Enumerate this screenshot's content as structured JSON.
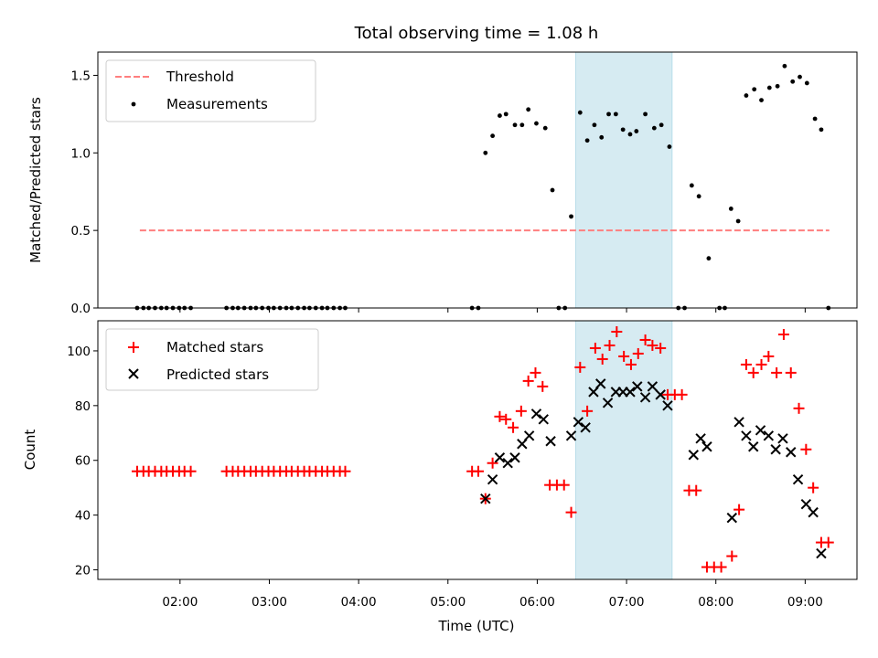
{
  "chart_data": {
    "title": "Total observing time = 1.08 h",
    "xlabel": "Time (UTC)",
    "x_unit": "hours UTC",
    "xlim": [
      1.08,
      9.58
    ],
    "xticks": [
      {
        "value": 2,
        "label": "02:00"
      },
      {
        "value": 3,
        "label": "03:00"
      },
      {
        "value": 4,
        "label": "04:00"
      },
      {
        "value": 5,
        "label": "05:00"
      },
      {
        "value": 6,
        "label": "06:00"
      },
      {
        "value": 7,
        "label": "07:00"
      },
      {
        "value": 8,
        "label": "08:00"
      },
      {
        "value": 9,
        "label": "09:00"
      }
    ],
    "highlight_span": {
      "x0": 6.43,
      "x1": 7.51,
      "color": "#add8e6"
    },
    "panels": [
      {
        "type": "scatter",
        "ylabel": "Matched/Predicted stars",
        "ylim": [
          0,
          1.65
        ],
        "yticks": [
          {
            "value": 0,
            "label": "0.0"
          },
          {
            "value": 0.5,
            "label": "0.5"
          },
          {
            "value": 1.0,
            "label": "1.0"
          },
          {
            "value": 1.5,
            "label": "1.5"
          }
        ],
        "legend": "top-left",
        "threshold": {
          "name": "Threshold",
          "color": "#ff7f7f",
          "y": 0.5,
          "x": [
            1.55,
            9.27
          ]
        },
        "series": [
          {
            "name": "Measurements",
            "marker": "dot",
            "color": "#000000",
            "points": [
              [
                1.52,
                0
              ],
              [
                1.59,
                0
              ],
              [
                1.65,
                0
              ],
              [
                1.72,
                0
              ],
              [
                1.79,
                0
              ],
              [
                1.85,
                0
              ],
              [
                1.92,
                0
              ],
              [
                1.99,
                0
              ],
              [
                2.05,
                0
              ],
              [
                2.12,
                0
              ],
              [
                2.52,
                0
              ],
              [
                2.59,
                0
              ],
              [
                2.65,
                0
              ],
              [
                2.72,
                0
              ],
              [
                2.79,
                0
              ],
              [
                2.85,
                0
              ],
              [
                2.92,
                0
              ],
              [
                2.99,
                0
              ],
              [
                3.05,
                0
              ],
              [
                3.12,
                0
              ],
              [
                3.19,
                0
              ],
              [
                3.25,
                0
              ],
              [
                3.32,
                0
              ],
              [
                3.39,
                0
              ],
              [
                3.45,
                0
              ],
              [
                3.52,
                0
              ],
              [
                3.59,
                0
              ],
              [
                3.65,
                0
              ],
              [
                3.72,
                0
              ],
              [
                3.79,
                0
              ],
              [
                3.85,
                0
              ],
              [
                5.27,
                0
              ],
              [
                5.34,
                0
              ],
              [
                5.42,
                1.0
              ],
              [
                5.5,
                1.11
              ],
              [
                5.58,
                1.24
              ],
              [
                5.65,
                1.25
              ],
              [
                5.75,
                1.18
              ],
              [
                5.83,
                1.18
              ],
              [
                5.9,
                1.28
              ],
              [
                5.99,
                1.19
              ],
              [
                6.09,
                1.16
              ],
              [
                6.17,
                0.76
              ],
              [
                6.24,
                0
              ],
              [
                6.31,
                0
              ],
              [
                6.38,
                0.59
              ],
              [
                6.48,
                1.26
              ],
              [
                6.56,
                1.08
              ],
              [
                6.64,
                1.18
              ],
              [
                6.72,
                1.1
              ],
              [
                6.8,
                1.25
              ],
              [
                6.88,
                1.25
              ],
              [
                6.96,
                1.15
              ],
              [
                7.04,
                1.12
              ],
              [
                7.11,
                1.14
              ],
              [
                7.21,
                1.25
              ],
              [
                7.31,
                1.16
              ],
              [
                7.39,
                1.18
              ],
              [
                7.48,
                1.04
              ],
              [
                7.58,
                0
              ],
              [
                7.65,
                0
              ],
              [
                7.73,
                0.79
              ],
              [
                7.81,
                0.72
              ],
              [
                7.92,
                0.32
              ],
              [
                8.04,
                0
              ],
              [
                8.1,
                0
              ],
              [
                8.17,
                0.64
              ],
              [
                8.25,
                0.56
              ],
              [
                8.34,
                1.37
              ],
              [
                8.43,
                1.41
              ],
              [
                8.51,
                1.34
              ],
              [
                8.6,
                1.42
              ],
              [
                8.69,
                1.43
              ],
              [
                8.77,
                1.56
              ],
              [
                8.86,
                1.46
              ],
              [
                8.94,
                1.49
              ],
              [
                9.02,
                1.45
              ],
              [
                9.11,
                1.22
              ],
              [
                9.18,
                1.15
              ],
              [
                9.26,
                0
              ]
            ]
          }
        ]
      },
      {
        "type": "scatter",
        "ylabel": "Count",
        "ylim": [
          16.5,
          111
        ],
        "yticks": [
          {
            "value": 20,
            "label": "20"
          },
          {
            "value": 40,
            "label": "40"
          },
          {
            "value": 60,
            "label": "60"
          },
          {
            "value": 80,
            "label": "80"
          },
          {
            "value": 100,
            "label": "100"
          }
        ],
        "legend": "top-left",
        "series": [
          {
            "name": "Matched stars",
            "marker": "plus",
            "color": "#ff0000",
            "points": [
              [
                1.52,
                56
              ],
              [
                1.59,
                56
              ],
              [
                1.65,
                56
              ],
              [
                1.72,
                56
              ],
              [
                1.79,
                56
              ],
              [
                1.85,
                56
              ],
              [
                1.92,
                56
              ],
              [
                1.99,
                56
              ],
              [
                2.05,
                56
              ],
              [
                2.12,
                56
              ],
              [
                2.52,
                56
              ],
              [
                2.59,
                56
              ],
              [
                2.65,
                56
              ],
              [
                2.72,
                56
              ],
              [
                2.79,
                56
              ],
              [
                2.85,
                56
              ],
              [
                2.92,
                56
              ],
              [
                2.99,
                56
              ],
              [
                3.05,
                56
              ],
              [
                3.12,
                56
              ],
              [
                3.19,
                56
              ],
              [
                3.25,
                56
              ],
              [
                3.32,
                56
              ],
              [
                3.39,
                56
              ],
              [
                3.45,
                56
              ],
              [
                3.52,
                56
              ],
              [
                3.59,
                56
              ],
              [
                3.65,
                56
              ],
              [
                3.72,
                56
              ],
              [
                3.79,
                56
              ],
              [
                3.85,
                56
              ],
              [
                5.27,
                56
              ],
              [
                5.34,
                56
              ],
              [
                5.42,
                46
              ],
              [
                5.5,
                59
              ],
              [
                5.58,
                76
              ],
              [
                5.65,
                75
              ],
              [
                5.73,
                72
              ],
              [
                5.82,
                78
              ],
              [
                5.9,
                89
              ],
              [
                5.98,
                92
              ],
              [
                6.06,
                87
              ],
              [
                6.14,
                51
              ],
              [
                6.22,
                51
              ],
              [
                6.3,
                51
              ],
              [
                6.38,
                41
              ],
              [
                6.48,
                94
              ],
              [
                6.56,
                78
              ],
              [
                6.65,
                101
              ],
              [
                6.73,
                97
              ],
              [
                6.81,
                102
              ],
              [
                6.89,
                107
              ],
              [
                6.97,
                98
              ],
              [
                7.05,
                95
              ],
              [
                7.13,
                99
              ],
              [
                7.21,
                104
              ],
              [
                7.29,
                102
              ],
              [
                7.38,
                101
              ],
              [
                7.46,
                84
              ],
              [
                7.54,
                84
              ],
              [
                7.62,
                84
              ],
              [
                7.7,
                49
              ],
              [
                7.78,
                49
              ],
              [
                7.9,
                21
              ],
              [
                7.98,
                21
              ],
              [
                8.06,
                21
              ],
              [
                8.18,
                25
              ],
              [
                8.26,
                42
              ],
              [
                8.34,
                95
              ],
              [
                8.42,
                92
              ],
              [
                8.51,
                95
              ],
              [
                8.59,
                98
              ],
              [
                8.68,
                92
              ],
              [
                8.76,
                106
              ],
              [
                8.84,
                92
              ],
              [
                8.93,
                79
              ],
              [
                9.01,
                64
              ],
              [
                9.09,
                50
              ],
              [
                9.18,
                30
              ],
              [
                9.26,
                30
              ]
            ]
          },
          {
            "name": "Predicted stars",
            "marker": "x",
            "color": "#000000",
            "points": [
              [
                5.42,
                46
              ],
              [
                5.5,
                53
              ],
              [
                5.58,
                61
              ],
              [
                5.67,
                59
              ],
              [
                5.75,
                61
              ],
              [
                5.83,
                66
              ],
              [
                5.91,
                69
              ],
              [
                5.99,
                77
              ],
              [
                6.07,
                75
              ],
              [
                6.15,
                67
              ],
              [
                6.38,
                69
              ],
              [
                6.46,
                74
              ],
              [
                6.54,
                72
              ],
              [
                6.63,
                85
              ],
              [
                6.71,
                88
              ],
              [
                6.79,
                81
              ],
              [
                6.88,
                85
              ],
              [
                6.96,
                85
              ],
              [
                7.04,
                85
              ],
              [
                7.12,
                87
              ],
              [
                7.21,
                83
              ],
              [
                7.29,
                87
              ],
              [
                7.38,
                84
              ],
              [
                7.46,
                80
              ],
              [
                7.75,
                62
              ],
              [
                7.83,
                68
              ],
              [
                7.9,
                65
              ],
              [
                8.18,
                39
              ],
              [
                8.26,
                74
              ],
              [
                8.34,
                69
              ],
              [
                8.42,
                65
              ],
              [
                8.5,
                71
              ],
              [
                8.59,
                69
              ],
              [
                8.67,
                64
              ],
              [
                8.75,
                68
              ],
              [
                8.84,
                63
              ],
              [
                8.92,
                53
              ],
              [
                9.01,
                44
              ],
              [
                9.09,
                41
              ],
              [
                9.18,
                26
              ]
            ]
          }
        ]
      }
    ]
  }
}
